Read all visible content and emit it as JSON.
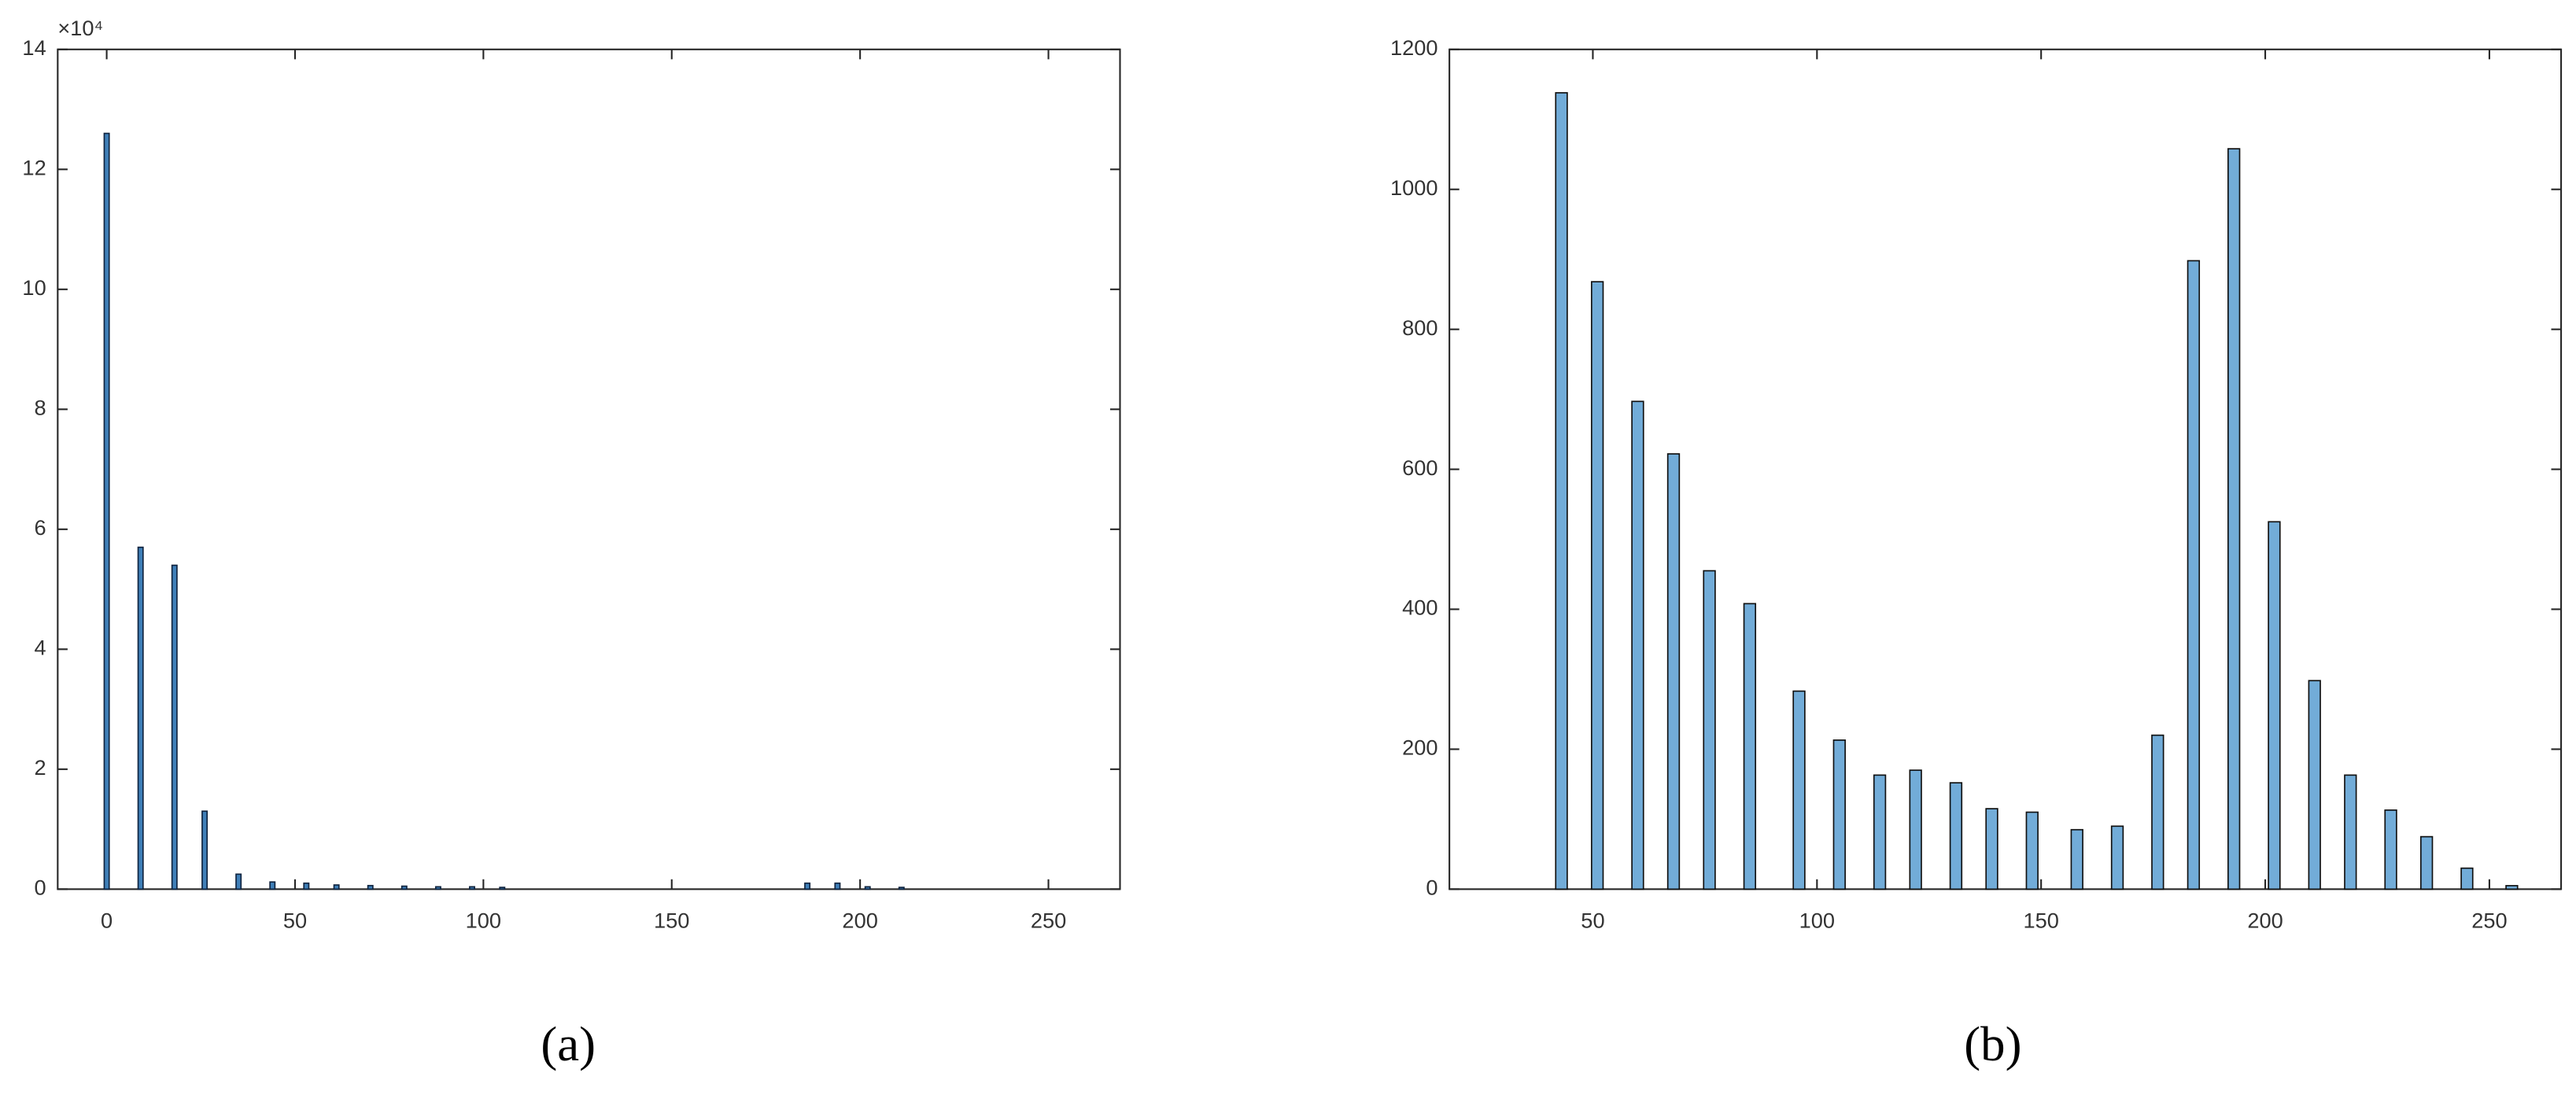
{
  "chart_data": [
    {
      "type": "bar",
      "caption": "(a)",
      "y_multiplier_label": "×10⁴",
      "color": "#3f7fb8",
      "edgecolor": "#10243f",
      "x": [
        0,
        9,
        18,
        26,
        35,
        44,
        53,
        61,
        70,
        79,
        88,
        97,
        105,
        186,
        194,
        202,
        211
      ],
      "values": [
        12.6,
        5.7,
        5.4,
        1.3,
        0.25,
        0.12,
        0.1,
        0.07,
        0.06,
        0.05,
        0.04,
        0.04,
        0.03,
        0.1,
        0.1,
        0.04,
        0.03
      ],
      "xlim": [
        -13,
        269
      ],
      "xticks": [
        0,
        50,
        100,
        150,
        200,
        250
      ],
      "ylim": [
        0,
        14
      ],
      "yticks": [
        0,
        2,
        4,
        6,
        8,
        10,
        12,
        14
      ]
    },
    {
      "type": "bar",
      "caption": "(b)",
      "color": "#72acd8",
      "edgecolor": "#111111",
      "x": [
        43,
        51,
        60,
        68,
        76,
        85,
        96,
        105,
        114,
        122,
        131,
        139,
        148,
        158,
        167,
        176,
        184,
        193,
        202,
        211,
        219,
        228,
        236,
        245,
        255
      ],
      "values": [
        1138,
        868,
        697,
        622,
        455,
        408,
        283,
        213,
        163,
        170,
        152,
        115,
        110,
        85,
        90,
        220,
        898,
        1058,
        525,
        298,
        163,
        113,
        75,
        30,
        5
      ],
      "xlim": [
        18,
        266
      ],
      "xticks": [
        50,
        100,
        150,
        200,
        250
      ],
      "ylim": [
        0,
        1200
      ],
      "yticks": [
        0,
        200,
        400,
        600,
        800,
        1000,
        1200
      ]
    }
  ]
}
